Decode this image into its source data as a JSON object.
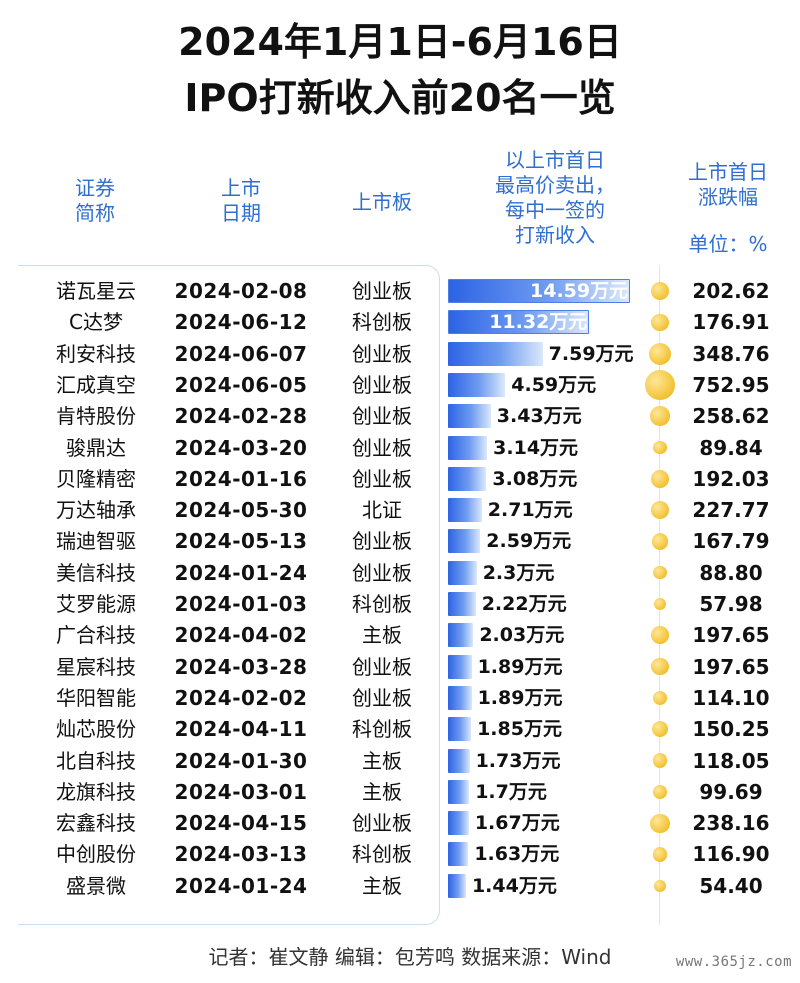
{
  "title_line1": "2024年1月1日-6月16日",
  "title_line2": "IPO打新收入前20名一览",
  "headers": {
    "name_line1": "证券",
    "name_line2": "简称",
    "date_line1": "上市",
    "date_line2": "日期",
    "board": "上市板",
    "income_line1": "以上市首日",
    "income_line2": "最高价卖出，",
    "income_line3": "每中一签的",
    "income_line4": "打新收入",
    "change_line1": "上市首日",
    "change_line2": "涨跌幅",
    "unit": "单位：%"
  },
  "footer": "记者：崔文静   编辑：包芳鸣   数据来源：Wind",
  "watermark": "www.365jz.com",
  "colors": {
    "bar": "#2c63e5",
    "header": "#2f6fd0",
    "dot": "#f2c233"
  },
  "chart_data": {
    "type": "bar",
    "orientation": "horizontal",
    "value_unit": "万元",
    "rows": [
      {
        "name": "诺瓦星云",
        "date": "2024-02-08",
        "board": "创业板",
        "income": 14.59,
        "income_label": "14.59万元",
        "change": 202.62,
        "change_label": "202.62"
      },
      {
        "name": "C达梦",
        "date": "2024-06-12",
        "board": "科创板",
        "income": 11.32,
        "income_label": "11.32万元",
        "change": 176.91,
        "change_label": "176.91"
      },
      {
        "name": "利安科技",
        "date": "2024-06-07",
        "board": "创业板",
        "income": 7.59,
        "income_label": "7.59万元",
        "change": 348.76,
        "change_label": "348.76"
      },
      {
        "name": "汇成真空",
        "date": "2024-06-05",
        "board": "创业板",
        "income": 4.59,
        "income_label": "4.59万元",
        "change": 752.95,
        "change_label": "752.95"
      },
      {
        "name": "肯特股份",
        "date": "2024-02-28",
        "board": "创业板",
        "income": 3.43,
        "income_label": "3.43万元",
        "change": 258.62,
        "change_label": "258.62"
      },
      {
        "name": "骏鼎达",
        "date": "2024-03-20",
        "board": "创业板",
        "income": 3.14,
        "income_label": "3.14万元",
        "change": 89.84,
        "change_label": "89.84"
      },
      {
        "name": "贝隆精密",
        "date": "2024-01-16",
        "board": "创业板",
        "income": 3.08,
        "income_label": "3.08万元",
        "change": 192.03,
        "change_label": "192.03"
      },
      {
        "name": "万达轴承",
        "date": "2024-05-30",
        "board": "北证",
        "income": 2.71,
        "income_label": "2.71万元",
        "change": 227.77,
        "change_label": "227.77"
      },
      {
        "name": "瑞迪智驱",
        "date": "2024-05-13",
        "board": "创业板",
        "income": 2.59,
        "income_label": "2.59万元",
        "change": 167.79,
        "change_label": "167.79"
      },
      {
        "name": "美信科技",
        "date": "2024-01-24",
        "board": "创业板",
        "income": 2.3,
        "income_label": "2.3万元",
        "change": 88.8,
        "change_label": "88.80"
      },
      {
        "name": "艾罗能源",
        "date": "2024-01-03",
        "board": "科创板",
        "income": 2.22,
        "income_label": "2.22万元",
        "change": 57.98,
        "change_label": "57.98"
      },
      {
        "name": "广合科技",
        "date": "2024-04-02",
        "board": "主板",
        "income": 2.03,
        "income_label": "2.03万元",
        "change": 197.65,
        "change_label": "197.65"
      },
      {
        "name": "星宸科技",
        "date": "2024-03-28",
        "board": "创业板",
        "income": 1.89,
        "income_label": "1.89万元",
        "change": 197.65,
        "change_label": "197.65"
      },
      {
        "name": "华阳智能",
        "date": "2024-02-02",
        "board": "创业板",
        "income": 1.89,
        "income_label": "1.89万元",
        "change": 114.1,
        "change_label": "114.10"
      },
      {
        "name": "灿芯股份",
        "date": "2024-04-11",
        "board": "科创板",
        "income": 1.85,
        "income_label": "1.85万元",
        "change": 150.25,
        "change_label": "150.25"
      },
      {
        "name": "北自科技",
        "date": "2024-01-30",
        "board": "主板",
        "income": 1.73,
        "income_label": "1.73万元",
        "change": 118.05,
        "change_label": "118.05"
      },
      {
        "name": "龙旗科技",
        "date": "2024-03-01",
        "board": "主板",
        "income": 1.7,
        "income_label": "1.7万元",
        "change": 99.69,
        "change_label": "99.69"
      },
      {
        "name": "宏鑫科技",
        "date": "2024-04-15",
        "board": "创业板",
        "income": 1.67,
        "income_label": "1.67万元",
        "change": 238.16,
        "change_label": "238.16"
      },
      {
        "name": "中创股份",
        "date": "2024-03-13",
        "board": "科创板",
        "income": 1.63,
        "income_label": "1.63万元",
        "change": 116.9,
        "change_label": "116.90"
      },
      {
        "name": "盛景微",
        "date": "2024-01-24",
        "board": "主板",
        "income": 1.44,
        "income_label": "1.44万元",
        "change": 54.4,
        "change_label": "54.40"
      }
    ]
  }
}
